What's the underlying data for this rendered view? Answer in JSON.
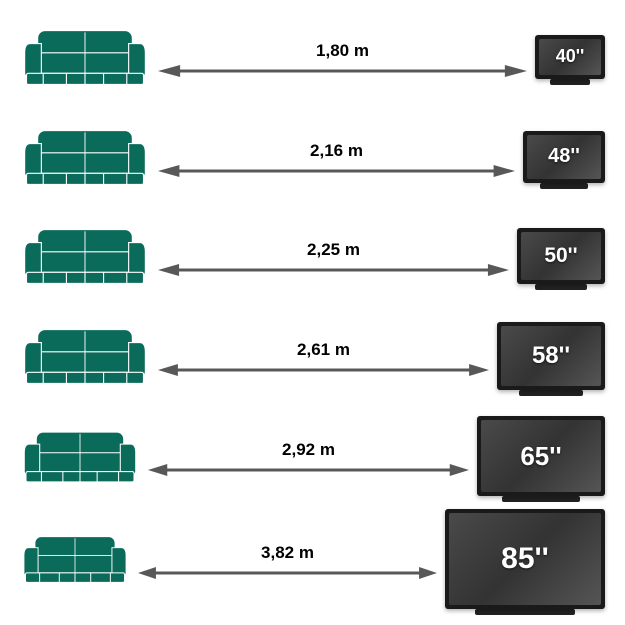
{
  "type": "infographic",
  "description": "TV size vs viewing distance guide",
  "background_color": "#ffffff",
  "sofa_color": "#0b6b5b",
  "arrow_color": "#585858",
  "distance_label_fontsize": 17,
  "rows": [
    {
      "distance": "1,80 m",
      "tv_size": "40''",
      "sofa_w": 130,
      "sofa_h": 65,
      "tv_w": 70,
      "tv_h": 44,
      "tv_font": 18,
      "stand_w": 40
    },
    {
      "distance": "2,16 m",
      "tv_size": "48''",
      "sofa_w": 130,
      "sofa_h": 65,
      "tv_w": 82,
      "tv_h": 52,
      "tv_font": 20,
      "stand_w": 48
    },
    {
      "distance": "2,25 m",
      "tv_size": "50''",
      "sofa_w": 130,
      "sofa_h": 65,
      "tv_w": 88,
      "tv_h": 56,
      "tv_font": 21,
      "stand_w": 52
    },
    {
      "distance": "2,61 m",
      "tv_size": "58''",
      "sofa_w": 130,
      "sofa_h": 65,
      "tv_w": 108,
      "tv_h": 68,
      "tv_font": 24,
      "stand_w": 64
    },
    {
      "distance": "2,92 m",
      "tv_size": "65''",
      "sofa_w": 120,
      "sofa_h": 60,
      "tv_w": 128,
      "tv_h": 80,
      "tv_font": 26,
      "stand_w": 78
    },
    {
      "distance": "3,82 m",
      "tv_size": "85''",
      "sofa_w": 110,
      "sofa_h": 55,
      "tv_w": 160,
      "tv_h": 100,
      "tv_font": 30,
      "stand_w": 100
    }
  ]
}
